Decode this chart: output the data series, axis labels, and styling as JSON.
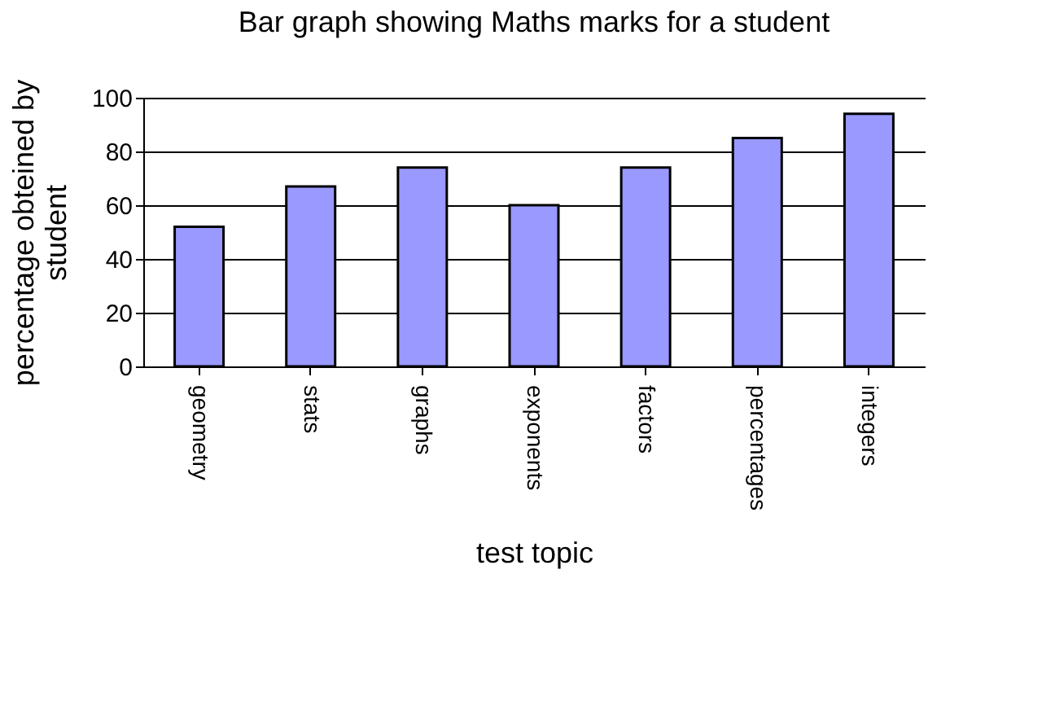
{
  "chart_data": {
    "type": "bar",
    "title": "Bar graph showing Maths marks for a student",
    "xlabel": "test topic",
    "ylabel": "percentage obteined by student",
    "categories": [
      "geometry",
      "stats",
      "graphs",
      "exponents",
      "factors",
      "percentages",
      "integers"
    ],
    "values": [
      52,
      67,
      74,
      60,
      74,
      85,
      94
    ],
    "color": "#9999ff",
    "ylim": [
      0,
      100
    ],
    "yticks": [
      0,
      20,
      40,
      60,
      80,
      100
    ],
    "grid": "y"
  }
}
